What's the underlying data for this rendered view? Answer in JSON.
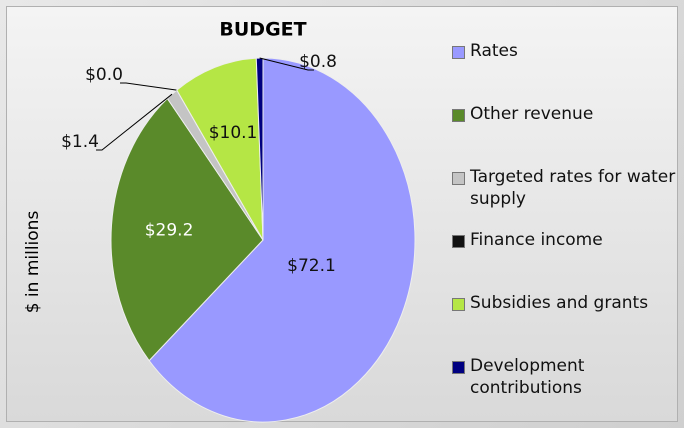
{
  "chart_data": {
    "type": "pie",
    "title": "BUDGET",
    "axis_label": "$ in millions",
    "categories": [
      "Rates",
      "Other revenue",
      "Targeted rates for water supply",
      "Finance income",
      "Subsidies and grants",
      "Development contributions"
    ],
    "values": [
      72.1,
      29.2,
      1.4,
      0.0,
      10.1,
      0.8
    ],
    "value_labels": [
      "$72.1",
      "$29.2",
      "$1.4",
      "$0.0",
      "$10.1",
      "$0.8"
    ],
    "colors": [
      "#9999ff",
      "#5a8a2a",
      "#c4c4c4",
      "#111111",
      "#b5e645",
      "#000080"
    ],
    "legend": "right"
  }
}
